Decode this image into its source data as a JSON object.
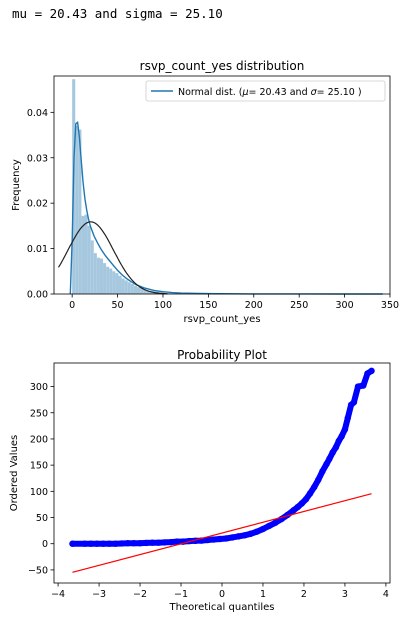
{
  "console_output": "mu = 20.43 and sigma = 25.10",
  "chart_data": [
    {
      "type": "bar",
      "title": "rsvp_count_yes distribution",
      "xlabel": "rsvp_count_yes",
      "ylabel": "Frequency",
      "xlim": [
        -20,
        350
      ],
      "ylim": [
        0,
        0.048
      ],
      "xticks": [
        0,
        50,
        100,
        150,
        200,
        250,
        300,
        350
      ],
      "yticks": [
        0.0,
        0.01,
        0.02,
        0.03,
        0.04
      ],
      "ytick_labels": [
        "0.00",
        "0.01",
        "0.02",
        "0.03",
        "0.04"
      ],
      "histogram": {
        "bin_edges": [
          0,
          3.4,
          6.8,
          10.2,
          13.6,
          17,
          20.4,
          23.8,
          27.2,
          30.6,
          34,
          37.4,
          40.8,
          44.2,
          47.6,
          51,
          54.4,
          57.8,
          61.2,
          64.6,
          68,
          71.4,
          74.8,
          78.2,
          81.6,
          85,
          88.4,
          91.8,
          95.2,
          98.6,
          102,
          110,
          120,
          140,
          170,
          210,
          260,
          342
        ],
        "density": [
          0.0473,
          0.037,
          0.0362,
          0.0172,
          0.0175,
          0.015,
          0.0118,
          0.009,
          0.008,
          0.0078,
          0.0068,
          0.006,
          0.0056,
          0.005,
          0.0046,
          0.004,
          0.0034,
          0.003,
          0.0026,
          0.0022,
          0.0018,
          0.0015,
          0.0013,
          0.001,
          0.0008,
          0.0007,
          0.0006,
          0.0005,
          0.0004,
          0.0003,
          0.0002,
          0.00015,
          0.0001,
          7e-05,
          4e-05,
          2e-05,
          1e-05
        ],
        "color": "#a6c8df"
      },
      "kde": {
        "name": "",
        "color": "#1f77b4",
        "x": [
          -2,
          0,
          2,
          4,
          6,
          8,
          10,
          12,
          14,
          16,
          18,
          20,
          24,
          28,
          32,
          36,
          40,
          45,
          50,
          55,
          60,
          65,
          70,
          80,
          90,
          100,
          110,
          120,
          140,
          160,
          200,
          250,
          300,
          342
        ],
        "y": [
          0.0,
          0.012,
          0.03,
          0.0375,
          0.0378,
          0.0345,
          0.0295,
          0.0245,
          0.021,
          0.0185,
          0.0165,
          0.015,
          0.0128,
          0.0112,
          0.0098,
          0.0086,
          0.0076,
          0.0064,
          0.0052,
          0.0042,
          0.0034,
          0.0027,
          0.0021,
          0.0013,
          0.0008,
          0.0005,
          0.0003,
          0.0002,
          0.0001,
          6e-05,
          3e-05,
          2e-05,
          1e-05,
          0.0
        ]
      },
      "normal_fit": {
        "name": "Normal dist. ($\\mu=$ 20.43 and $\\sigma=$ 25.10 )",
        "legend_prefix": "Normal dist. (",
        "mu_symbol": "μ",
        "mu_part": "=  20.43 and ",
        "sigma_symbol": "σ",
        "sigma_part": "=  25.10 )",
        "mu": 20.43,
        "sigma": 25.1,
        "x_range": [
          -15,
          105
        ],
        "color": "#222222"
      },
      "legend_placement": "top-right",
      "grid": false
    },
    {
      "type": "scatter",
      "title": "Probability Plot",
      "xlabel": "Theoretical quantiles",
      "ylabel": "Ordered Values",
      "xlim": [
        -4.1,
        4.1
      ],
      "ylim": [
        -75,
        345
      ],
      "xticks": [
        -4,
        -3,
        -2,
        -1,
        0,
        1,
        2,
        3,
        4
      ],
      "xtick_labels": [
        "−4",
        "−3",
        "−2",
        "−1",
        "0",
        "1",
        "2",
        "3",
        "4"
      ],
      "yticks": [
        -50,
        0,
        50,
        100,
        150,
        200,
        250,
        300
      ],
      "ytick_labels": [
        "−50",
        "0",
        "50",
        "100",
        "150",
        "200",
        "250",
        "300"
      ],
      "points": {
        "color": "#0000ff",
        "x": [
          -3.65,
          -3.35,
          -3.2,
          -3.05,
          -2.9,
          -2.75,
          -2.6,
          -2.45,
          -2.3,
          -2.15,
          -2.0,
          -1.85,
          -1.7,
          -1.55,
          -1.4,
          -1.25,
          -1.1,
          -0.95,
          -0.8,
          -0.65,
          -0.5,
          -0.35,
          -0.2,
          -0.05,
          0.1,
          0.25,
          0.4,
          0.55,
          0.7,
          0.85,
          1.0,
          1.15,
          1.3,
          1.45,
          1.6,
          1.75,
          1.85,
          1.95,
          2.05,
          2.15,
          2.25,
          2.35,
          2.45,
          2.55,
          2.62,
          2.7,
          2.78,
          2.85,
          2.92,
          3.0,
          3.07,
          3.15,
          3.22,
          3.32,
          3.45,
          3.55,
          3.65
        ],
        "y": [
          0,
          0,
          0,
          0,
          0,
          0,
          0,
          0.5,
          1,
          1,
          1,
          1.5,
          2,
          2,
          2.5,
          3,
          4,
          4,
          5,
          5.5,
          6,
          7,
          8,
          9,
          10,
          12,
          14,
          16,
          19,
          23,
          28,
          34,
          40,
          47,
          55,
          64,
          70,
          77,
          85,
          96,
          108,
          122,
          138,
          152,
          162,
          174,
          184,
          196,
          205,
          218,
          240,
          265,
          270,
          300,
          302,
          325,
          330
        ]
      },
      "fit_line": {
        "color": "#ff0000",
        "x": [
          -3.65,
          3.65
        ],
        "y": [
          -54.6,
          95.5
        ]
      },
      "grid": false
    }
  ]
}
